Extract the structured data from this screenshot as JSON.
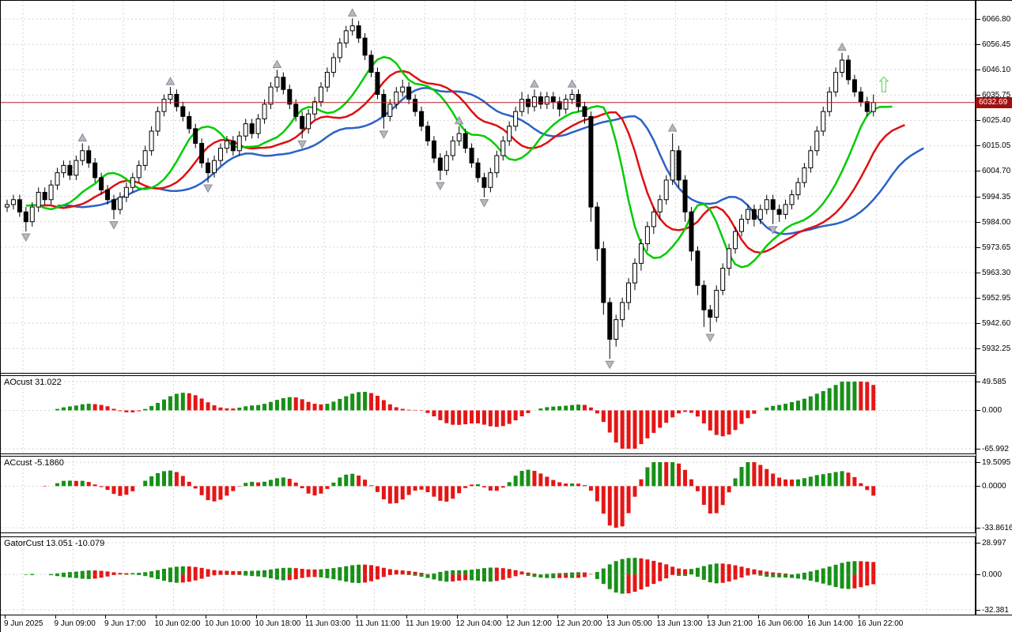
{
  "chart_data": {
    "type": "candlestick",
    "title": "",
    "legend_position": "none",
    "grid": true,
    "price_axis": {
      "labels": [
        "6066.80",
        "6056.45",
        "6046.10",
        "6035.75",
        "6025.40",
        "6015.05",
        "6004.70",
        "5994.35",
        "5984.00",
        "5973.65",
        "5963.30",
        "5952.95",
        "5942.60",
        "5932.25"
      ],
      "current_price_label": "6032.69",
      "current_price_value": 6032.69
    },
    "time_axis": {
      "labels": [
        "9 Jun 2025",
        "9 Jun 09:00",
        "9 Jun 17:00",
        "10 Jun 02:00",
        "10 Jun 10:00",
        "10 Jun 18:00",
        "11 Jun 03:00",
        "11 Jun 11:00",
        "11 Jun 19:00",
        "12 Jun 04:00",
        "12 Jun 12:00",
        "12 Jun 20:00",
        "13 Jun 05:00",
        "13 Jun 13:00",
        "13 Jun 21:00",
        "16 Jun 06:00",
        "16 Jun 14:00",
        "16 Jun 22:00"
      ]
    },
    "main": {
      "candles": [
        [
          5990,
          5993,
          5988,
          5991
        ],
        [
          5991,
          5995,
          5989,
          5993
        ],
        [
          5993,
          5995,
          5986,
          5988
        ],
        [
          5988,
          5990,
          5980,
          5984
        ],
        [
          5984,
          5992,
          5982,
          5990
        ],
        [
          5990,
          5998,
          5988,
          5996
        ],
        [
          5996,
          5998,
          5991,
          5993
        ],
        [
          5993,
          6001,
          5991,
          5999
        ],
        [
          5999,
          6006,
          5997,
          6004
        ],
        [
          6004,
          6009,
          6002,
          6007
        ],
        [
          6007,
          6009,
          6001,
          6003
        ],
        [
          6003,
          6011,
          6001,
          6009
        ],
        [
          6009,
          6016,
          6007,
          6013
        ],
        [
          6013,
          6015,
          6006,
          6008
        ],
        [
          6008,
          6010,
          6000,
          6002
        ],
        [
          6002,
          6004,
          5995,
          5997
        ],
        [
          5997,
          5999,
          5991,
          5993
        ],
        [
          5993,
          5995,
          5985,
          5989
        ],
        [
          5989,
          5996,
          5987,
          5994
        ],
        [
          5994,
          6000,
          5992,
          5998
        ],
        [
          5998,
          6004,
          5996,
          6002
        ],
        [
          6002,
          6009,
          6000,
          6007
        ],
        [
          6007,
          6015,
          6005,
          6013
        ],
        [
          6013,
          6023,
          6011,
          6021
        ],
        [
          6021,
          6031,
          6019,
          6029
        ],
        [
          6029,
          6036,
          6027,
          6034
        ],
        [
          6034,
          6039,
          6032,
          6036
        ],
        [
          6036,
          6038,
          6029,
          6031
        ],
        [
          6031,
          6033,
          6025,
          6027
        ],
        [
          6027,
          6029,
          6020,
          6022
        ],
        [
          6022,
          6024,
          6014,
          6016
        ],
        [
          6016,
          6018,
          6006,
          6008
        ],
        [
          6008,
          6010,
          6000,
          6004
        ],
        [
          6004,
          6011,
          6002,
          6009
        ],
        [
          6009,
          6016,
          6007,
          6014
        ],
        [
          6014,
          6019,
          6012,
          6017
        ],
        [
          6017,
          6019,
          6011,
          6013
        ],
        [
          6013,
          6021,
          6011,
          6019
        ],
        [
          6019,
          6026,
          6017,
          6024
        ],
        [
          6024,
          6026,
          6018,
          6020
        ],
        [
          6020,
          6028,
          6018,
          6026
        ],
        [
          6026,
          6034,
          6024,
          6032
        ],
        [
          6032,
          6041,
          6030,
          6039
        ],
        [
          6039,
          6046,
          6037,
          6043
        ],
        [
          6043,
          6045,
          6036,
          6038
        ],
        [
          6038,
          6040,
          6030,
          6032
        ],
        [
          6032,
          6034,
          6025,
          6027
        ],
        [
          6027,
          6029,
          6018,
          6022
        ],
        [
          6022,
          6030,
          6020,
          6028
        ],
        [
          6028,
          6035,
          6026,
          6033
        ],
        [
          6033,
          6041,
          6031,
          6039
        ],
        [
          6039,
          6047,
          6037,
          6045
        ],
        [
          6045,
          6053,
          6043,
          6051
        ],
        [
          6051,
          6059,
          6049,
          6057
        ],
        [
          6057,
          6064,
          6055,
          6062
        ],
        [
          6062,
          6067,
          6060,
          6064
        ],
        [
          6064,
          6066,
          6057,
          6059
        ],
        [
          6059,
          6061,
          6050,
          6052
        ],
        [
          6052,
          6054,
          6043,
          6045
        ],
        [
          6045,
          6047,
          6034,
          6036
        ],
        [
          6036,
          6038,
          6022,
          6027
        ],
        [
          6027,
          6034,
          6025,
          6032
        ],
        [
          6032,
          6039,
          6030,
          6037
        ],
        [
          6037,
          6042,
          6035,
          6039
        ],
        [
          6039,
          6041,
          6032,
          6034
        ],
        [
          6034,
          6036,
          6027,
          6029
        ],
        [
          6029,
          6031,
          6021,
          6023
        ],
        [
          6023,
          6025,
          6015,
          6017
        ],
        [
          6017,
          6019,
          6008,
          6010
        ],
        [
          6010,
          6012,
          6001,
          6005
        ],
        [
          6005,
          6013,
          6003,
          6011
        ],
        [
          6011,
          6019,
          6009,
          6017
        ],
        [
          6017,
          6023,
          6015,
          6020
        ],
        [
          6020,
          6022,
          6012,
          6014
        ],
        [
          6014,
          6016,
          6006,
          6008
        ],
        [
          6008,
          6010,
          6000,
          6002
        ],
        [
          6002,
          6004,
          5994,
          5998
        ],
        [
          5998,
          6006,
          5996,
          6004
        ],
        [
          6004,
          6013,
          6002,
          6011
        ],
        [
          6011,
          6019,
          6009,
          6017
        ],
        [
          6017,
          6025,
          6015,
          6023
        ],
        [
          6023,
          6031,
          6021,
          6029
        ],
        [
          6029,
          6037,
          6027,
          6034
        ],
        [
          6034,
          6036,
          6028,
          6031
        ],
        [
          6031,
          6038,
          6029,
          6035
        ],
        [
          6035,
          6037,
          6030,
          6032
        ],
        [
          6032,
          6037,
          6030,
          6035
        ],
        [
          6035,
          6037,
          6030,
          6033
        ],
        [
          6033,
          6035,
          6027,
          6030
        ],
        [
          6030,
          6036,
          6028,
          6034
        ],
        [
          6034,
          6038,
          6032,
          6036
        ],
        [
          6036,
          6038,
          6029,
          6031
        ],
        [
          6031,
          6033,
          6024,
          6027
        ],
        [
          6027,
          6029,
          5984,
          5990
        ],
        [
          5990,
          5992,
          5968,
          5973
        ],
        [
          5973,
          5976,
          5946,
          5951
        ],
        [
          5951,
          5953,
          5928,
          5936
        ],
        [
          5936,
          5946,
          5933,
          5944
        ],
        [
          5944,
          5953,
          5941,
          5951
        ],
        [
          5951,
          5961,
          5948,
          5959
        ],
        [
          5959,
          5969,
          5956,
          5967
        ],
        [
          5967,
          5977,
          5964,
          5975
        ],
        [
          5975,
          5984,
          5972,
          5982
        ],
        [
          5982,
          5990,
          5979,
          5988
        ],
        [
          5988,
          5995,
          5985,
          5993
        ],
        [
          5993,
          6003,
          5991,
          6001
        ],
        [
          6001,
          6020,
          5999,
          6013
        ],
        [
          6013,
          6015,
          5998,
          6001
        ],
        [
          6001,
          6003,
          5984,
          5988
        ],
        [
          5988,
          5990,
          5968,
          5972
        ],
        [
          5972,
          5974,
          5954,
          5958
        ],
        [
          5958,
          5960,
          5941,
          5948
        ],
        [
          5948,
          5950,
          5939,
          5945
        ],
        [
          5945,
          5958,
          5943,
          5956
        ],
        [
          5956,
          5967,
          5954,
          5965
        ],
        [
          5965,
          5975,
          5962,
          5973
        ],
        [
          5973,
          5982,
          5971,
          5980
        ],
        [
          5980,
          5987,
          5978,
          5985
        ],
        [
          5985,
          5991,
          5983,
          5989
        ],
        [
          5989,
          5991,
          5982,
          5985
        ],
        [
          5985,
          5991,
          5983,
          5989
        ],
        [
          5989,
          5995,
          5987,
          5993
        ],
        [
          5993,
          5995,
          5983,
          5989
        ],
        [
          5989,
          5991,
          5984,
          5987
        ],
        [
          5987,
          5993,
          5985,
          5991
        ],
        [
          5991,
          5997,
          5989,
          5995
        ],
        [
          5995,
          6002,
          5993,
          6000
        ],
        [
          6000,
          6008,
          5998,
          6006
        ],
        [
          6006,
          6015,
          6004,
          6013
        ],
        [
          6013,
          6023,
          6011,
          6021
        ],
        [
          6021,
          6031,
          6019,
          6029
        ],
        [
          6029,
          6039,
          6027,
          6037
        ],
        [
          6037,
          6047,
          6035,
          6045
        ],
        [
          6045,
          6053,
          6043,
          6050
        ],
        [
          6050,
          6052,
          6040,
          6042
        ],
        [
          6042,
          6044,
          6035,
          6037
        ],
        [
          6037,
          6039,
          6031,
          6033
        ],
        [
          6033,
          6035,
          6027,
          6029
        ],
        [
          6029,
          6036,
          6027,
          6032.7
        ]
      ],
      "fractals_up": [
        12,
        26,
        43,
        55,
        72,
        84,
        90,
        106,
        133
      ],
      "fractals_down": [
        3,
        17,
        32,
        47,
        60,
        69,
        76,
        96,
        112,
        122
      ],
      "buy_arrow": {
        "x_index": 139.5,
        "price": 6040
      },
      "alligator": {
        "jaw": {
          "period": 13,
          "shift": 8,
          "color": "#2b62c6"
        },
        "teeth": {
          "period": 8,
          "shift": 5,
          "color": "#dd1111"
        },
        "lips": {
          "period": 5,
          "shift": 3,
          "color": "#00cc00"
        }
      }
    },
    "indicators": [
      {
        "name": "AOcust",
        "title": "AOcust 31.022",
        "axis_labels": [
          "49.585",
          "0.000",
          "-65.992"
        ],
        "top_value": 49.585,
        "bottom_value": -65.992,
        "scale": 1.15,
        "kind": "ao"
      },
      {
        "name": "ACcust",
        "title": "ACcust -5.1860",
        "axis_labels": [
          "19.5095",
          "0.0000",
          "-33.8616"
        ],
        "top_value": 19.5095,
        "bottom_value": -33.8616,
        "scale": 1.3,
        "kind": "ac"
      },
      {
        "name": "GatorCust",
        "title": "GatorCust 13.051 -10.079",
        "axis_labels": [
          "28.997",
          "0.000",
          "-32.381"
        ],
        "top_value": 28.997,
        "bottom_value": -32.381,
        "scale": 1.2,
        "kind": "gator"
      }
    ],
    "colors": {
      "background": "#ffffff",
      "grid": "#d6d6d6",
      "frame": "#000000",
      "bull_body": "#ffffff",
      "bear_body": "#000000",
      "candle_outline": "#000000",
      "hist_up": "#179017",
      "hist_down": "#e51515",
      "price_line": "#b22020",
      "price_tag_bg": "#a01010",
      "price_tag_text": "#ffffff",
      "fractal_fill": "#b4b8c0",
      "fractal_stroke": "#8a8e96",
      "buy_arrow": "#7cd97c"
    }
  }
}
